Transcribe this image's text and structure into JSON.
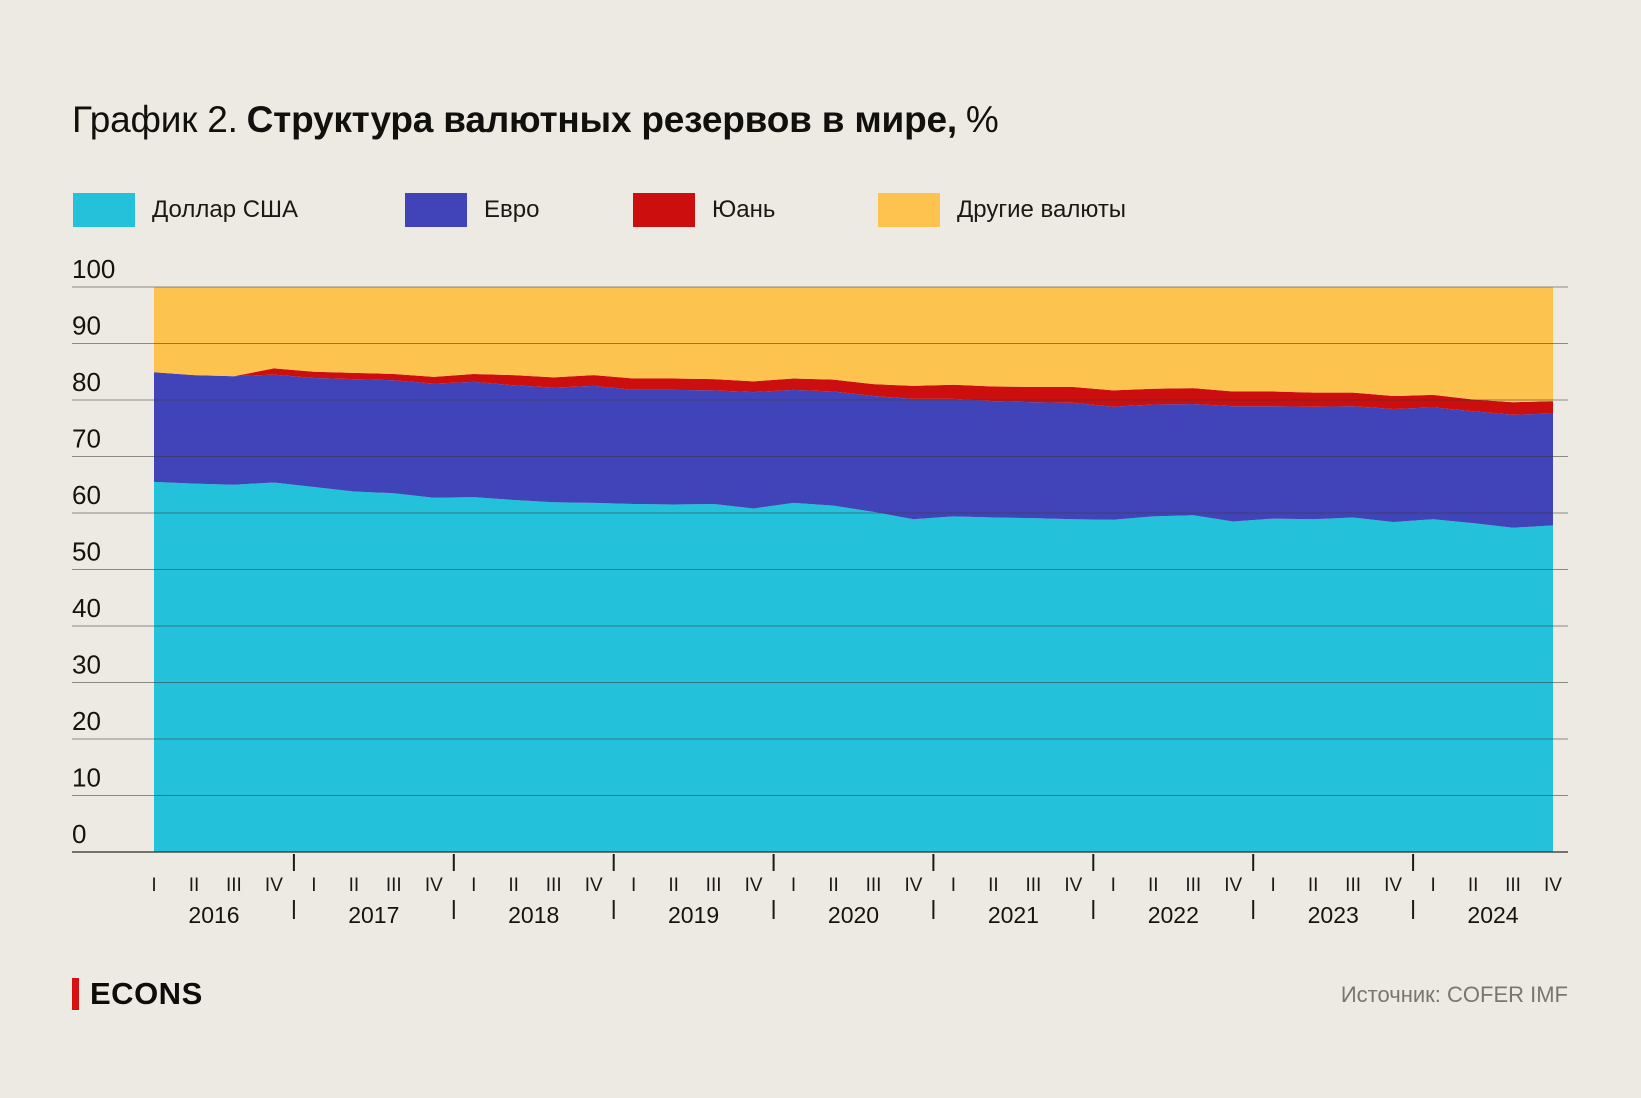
{
  "title": {
    "prefix": "График 2.",
    "main": "Структура валютных резервов в мире,",
    "unit": "%"
  },
  "chart_data": {
    "type": "area",
    "stacked": true,
    "stack_total": 100,
    "title": "График 2. Структура валютных резервов в мире, %",
    "ylim": [
      0,
      100
    ],
    "yticks": [
      100,
      90,
      80,
      70,
      60,
      50,
      40,
      30,
      20,
      10,
      0
    ],
    "grid": true,
    "legend_position": "top",
    "x": {
      "years": [
        "2016",
        "2017",
        "2018",
        "2019",
        "2020",
        "2021",
        "2022",
        "2023",
        "2024"
      ],
      "quarters": [
        "I",
        "II",
        "III",
        "IV"
      ]
    },
    "series": [
      {
        "name": "Доллар США",
        "color": "#24C1DB",
        "values": [
          65.5,
          65.2,
          65.0,
          65.4,
          64.6,
          63.8,
          63.5,
          62.7,
          62.8,
          62.3,
          61.9,
          61.8,
          61.6,
          61.5,
          61.6,
          60.8,
          61.8,
          61.3,
          60.2,
          58.9,
          59.4,
          59.2,
          59.1,
          58.9,
          58.8,
          59.4,
          59.6,
          58.5,
          59.0,
          58.9,
          59.2,
          58.4,
          58.9,
          58.2,
          57.4,
          57.8
        ]
      },
      {
        "name": "Евро",
        "color": "#4144B8",
        "values": [
          19.4,
          19.2,
          19.2,
          19.1,
          19.3,
          19.9,
          20.0,
          20.2,
          20.4,
          20.3,
          20.3,
          20.7,
          20.2,
          20.3,
          20.1,
          20.6,
          20.0,
          20.2,
          20.5,
          21.3,
          20.8,
          20.6,
          20.5,
          20.6,
          20.0,
          19.8,
          19.7,
          20.4,
          19.9,
          19.9,
          19.7,
          20.0,
          19.8,
          19.8,
          20.0,
          19.8
        ]
      },
      {
        "name": "Юань",
        "color": "#CD0E0E",
        "values": [
          0,
          0,
          0,
          1.1,
          1.1,
          1.1,
          1.1,
          1.2,
          1.4,
          1.8,
          1.8,
          1.9,
          2.0,
          2.0,
          2.0,
          1.9,
          2.0,
          2.1,
          2.1,
          2.3,
          2.5,
          2.6,
          2.7,
          2.8,
          2.9,
          2.8,
          2.8,
          2.6,
          2.6,
          2.5,
          2.4,
          2.3,
          2.2,
          2.1,
          2.2,
          2.2
        ]
      },
      {
        "name": "Другие валюты",
        "color": "#FCC34F",
        "values": [
          15.1,
          15.6,
          15.8,
          14.4,
          15.0,
          15.2,
          15.4,
          15.9,
          15.4,
          15.6,
          16.0,
          15.6,
          16.2,
          16.2,
          16.3,
          16.7,
          16.2,
          16.4,
          17.2,
          17.5,
          17.3,
          17.6,
          17.7,
          17.7,
          18.3,
          18.0,
          17.9,
          18.5,
          18.5,
          18.7,
          18.7,
          19.3,
          19.1,
          19.9,
          20.4,
          20.2
        ]
      }
    ]
  },
  "footer": {
    "brand": "ECONS",
    "source": "Источник: COFER IMF"
  }
}
